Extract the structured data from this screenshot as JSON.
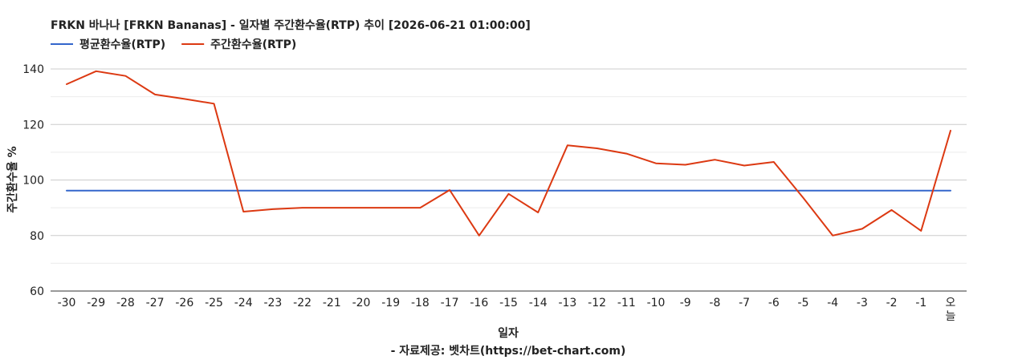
{
  "chart_data": {
    "type": "line",
    "title": "FRKN 바나나 [FRKN Bananas] - 일자별 주간환수율(RTP) 추이 [2026-06-21 01:00:00]",
    "xlabel": "일자",
    "ylabel": "주간환수율 %",
    "source": "- 자료제공: 벳차트(https://bet-chart.com)",
    "categories": [
      "-30",
      "-29",
      "-28",
      "-27",
      "-26",
      "-25",
      "-24",
      "-23",
      "-22",
      "-21",
      "-20",
      "-19",
      "-18",
      "-17",
      "-16",
      "-15",
      "-14",
      "-13",
      "-12",
      "-11",
      "-10",
      "-9",
      "-8",
      "-7",
      "-6",
      "-5",
      "-4",
      "-3",
      "-2",
      "-1",
      "오늘"
    ],
    "ylim": [
      60,
      140
    ],
    "yticks": [
      60,
      80,
      100,
      120,
      140
    ],
    "grid": true,
    "legend_position": "top-left",
    "series": [
      {
        "name": "평균환수율(RTP)",
        "color": "#3366cc",
        "values": [
          96.2,
          96.2,
          96.2,
          96.2,
          96.2,
          96.2,
          96.2,
          96.2,
          96.2,
          96.2,
          96.2,
          96.2,
          96.2,
          96.2,
          96.2,
          96.2,
          96.2,
          96.2,
          96.2,
          96.2,
          96.2,
          96.2,
          96.2,
          96.2,
          96.2,
          96.2,
          96.2,
          96.2,
          96.2,
          96.2,
          96.2
        ]
      },
      {
        "name": "주간환수율(RTP)",
        "color": "#dc3912",
        "values": [
          134.5,
          139.2,
          137.5,
          130.8,
          129.2,
          127.5,
          88.6,
          89.5,
          90.0,
          90.0,
          90.0,
          90.0,
          90.0,
          96.4,
          80.0,
          95.0,
          88.3,
          112.5,
          111.4,
          109.5,
          106.0,
          105.5,
          107.3,
          105.2,
          106.5,
          93.6,
          80.0,
          82.4,
          89.2,
          81.7,
          117.8
        ]
      }
    ]
  }
}
